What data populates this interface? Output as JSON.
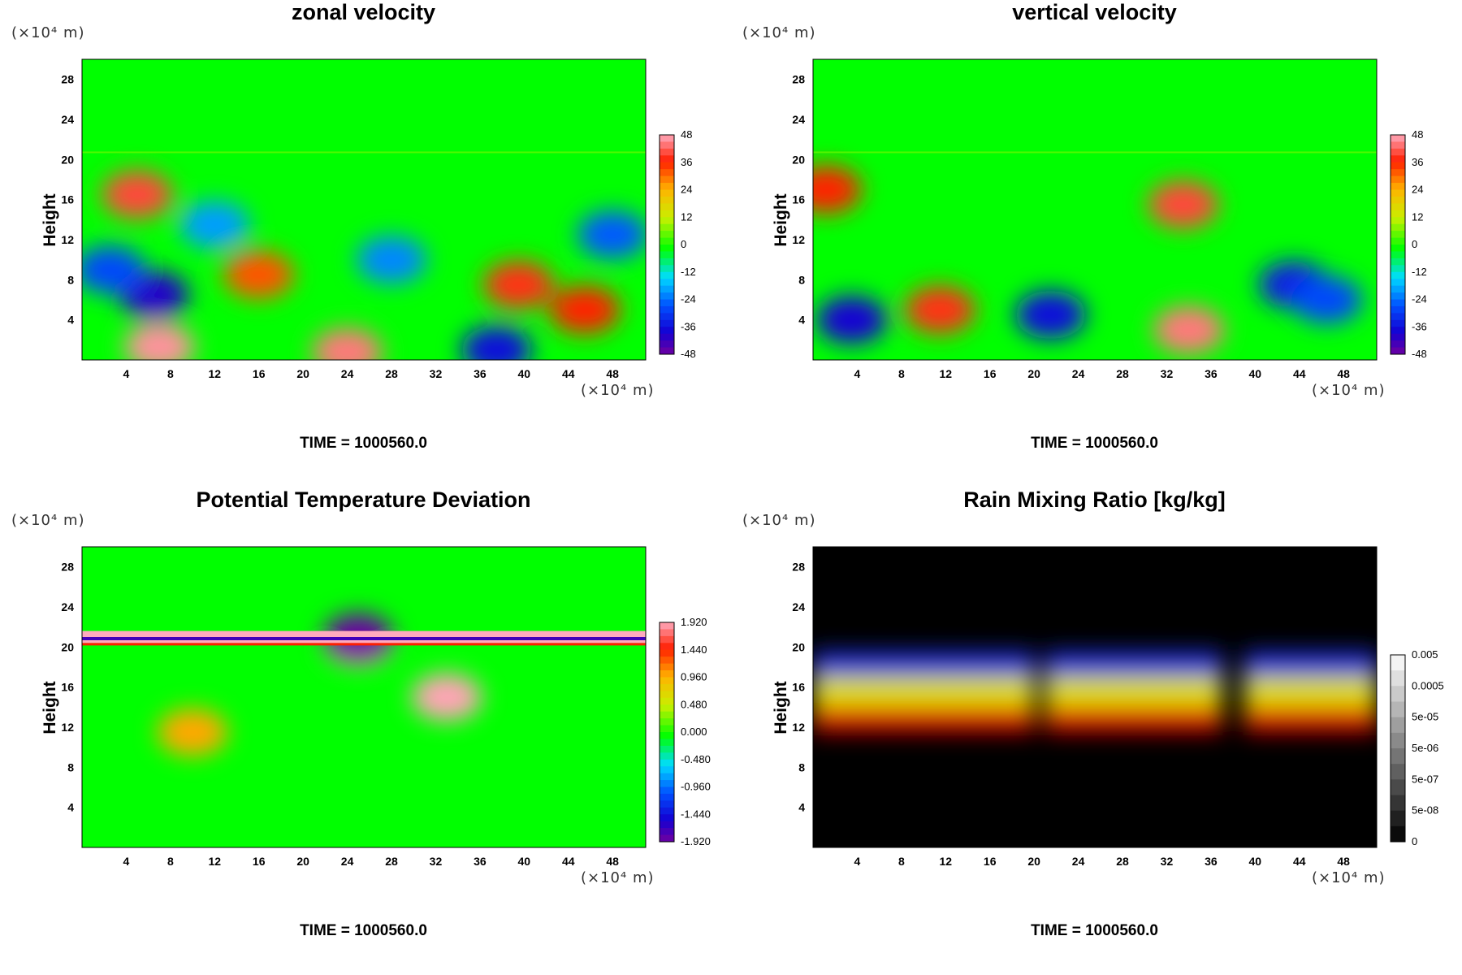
{
  "panels": [
    {
      "title": "zonal velocity",
      "y_unit": "(×10⁴ m)",
      "x_unit": "(×10⁴ m)",
      "ylabel": "Height",
      "time": "TIME = 1000560.0"
    },
    {
      "title": "vertical velocity",
      "y_unit": "(×10⁴ m)",
      "x_unit": "(×10⁴ m)",
      "ylabel": "Height",
      "time": "TIME = 1000560.0"
    },
    {
      "title": "Potential Temperature Deviation",
      "y_unit": "(×10⁴ m)",
      "x_unit": "(×10⁴ m)",
      "ylabel": "Height",
      "time": "TIME = 1000560.0"
    },
    {
      "title": "Rain Mixing Ratio [kg/kg]",
      "y_unit": "(×10⁴ m)",
      "x_unit": "(×10⁴ m)",
      "ylabel": "Height",
      "time": "TIME = 1000560.0"
    }
  ],
  "chart_data": [
    {
      "type": "heatmap",
      "title": "zonal velocity",
      "xlabel": "",
      "ylabel": "Height",
      "x_ticks": [
        "4",
        "8",
        "12",
        "16",
        "20",
        "24",
        "28",
        "32",
        "36",
        "40",
        "44",
        "48"
      ],
      "y_ticks": [
        "4",
        "8",
        "12",
        "16",
        "20",
        "24",
        "28"
      ],
      "xlim": [
        0,
        51
      ],
      "ylim": [
        0,
        30
      ],
      "colorbar_ticks": [
        "48",
        "36",
        "24",
        "12",
        "0",
        "-12",
        "-24",
        "-36",
        "-48"
      ],
      "colorbar_range": [
        -48,
        48
      ],
      "colormap": "rainbow",
      "background_color": "#00ff00",
      "features": [
        {
          "x": 6.5,
          "y": 6.5,
          "value": -40
        },
        {
          "x": 2.5,
          "y": 9,
          "value": -28
        },
        {
          "x": 16,
          "y": 8.5,
          "value": 32
        },
        {
          "x": 39.5,
          "y": 7.5,
          "value": 38
        },
        {
          "x": 45.5,
          "y": 5,
          "value": 36
        },
        {
          "x": 7,
          "y": 1.3,
          "value": 46
        },
        {
          "x": 24,
          "y": 0.8,
          "value": 44
        },
        {
          "x": 37.5,
          "y": 1,
          "value": -36
        },
        {
          "x": 5,
          "y": 16.5,
          "value": 40
        },
        {
          "x": 12,
          "y": 13.5,
          "value": -20
        },
        {
          "x": 28,
          "y": 10,
          "value": -22
        },
        {
          "x": 48,
          "y": 12.5,
          "value": -26
        }
      ]
    },
    {
      "type": "heatmap",
      "title": "vertical velocity",
      "xlabel": "",
      "ylabel": "Height",
      "x_ticks": [
        "4",
        "8",
        "12",
        "16",
        "20",
        "24",
        "28",
        "32",
        "36",
        "40",
        "44",
        "48"
      ],
      "y_ticks": [
        "4",
        "8",
        "12",
        "16",
        "20",
        "24",
        "28"
      ],
      "xlim": [
        0,
        51
      ],
      "ylim": [
        0,
        30
      ],
      "colorbar_ticks": [
        "48",
        "36",
        "24",
        "12",
        "0",
        "-12",
        "-24",
        "-36",
        "-48"
      ],
      "colorbar_range": [
        -48,
        48
      ],
      "colormap": "rainbow",
      "background_color": "#00ff00",
      "features": [
        {
          "x": 11.5,
          "y": 5,
          "value": 38
        },
        {
          "x": 3.5,
          "y": 4,
          "value": -38
        },
        {
          "x": 21.5,
          "y": 4.5,
          "value": -36
        },
        {
          "x": 34,
          "y": 3,
          "value": 44
        },
        {
          "x": 33.5,
          "y": 15.5,
          "value": 40
        },
        {
          "x": 43.5,
          "y": 7.5,
          "value": -34
        },
        {
          "x": 46.5,
          "y": 6,
          "value": -28
        },
        {
          "x": 1.2,
          "y": 17,
          "value": 36
        }
      ]
    },
    {
      "type": "heatmap",
      "title": "Potential Temperature Deviation",
      "xlabel": "",
      "ylabel": "Height",
      "x_ticks": [
        "4",
        "8",
        "12",
        "16",
        "20",
        "24",
        "28",
        "32",
        "36",
        "40",
        "44",
        "48"
      ],
      "y_ticks": [
        "4",
        "8",
        "12",
        "16",
        "20",
        "24",
        "28"
      ],
      "xlim": [
        0,
        51
      ],
      "ylim": [
        0,
        30
      ],
      "colorbar_ticks": [
        "1.920",
        "1.440",
        "0.960",
        "0.480",
        "0.000",
        "-0.480",
        "-0.960",
        "-1.440",
        "-1.920"
      ],
      "colorbar_range": [
        -1.92,
        1.92
      ],
      "colormap": "rainbow",
      "background_color": "#00ff00",
      "features": [
        {
          "x": 33,
          "y": 15,
          "value": 1.9
        },
        {
          "x": 25,
          "y": 20.5,
          "value": 1.9
        },
        {
          "x": 25,
          "y": 21,
          "value": -1.9
        },
        {
          "x": 10,
          "y": 11.5,
          "value": 1.0
        }
      ]
    },
    {
      "type": "heatmap",
      "title": "Rain Mixing Ratio [kg/kg]",
      "xlabel": "",
      "ylabel": "Height",
      "x_ticks": [
        "4",
        "8",
        "12",
        "16",
        "20",
        "24",
        "28",
        "32",
        "36",
        "40",
        "44",
        "48"
      ],
      "y_ticks": [
        "4",
        "8",
        "12",
        "16",
        "20",
        "24",
        "28"
      ],
      "xlim": [
        0,
        51
      ],
      "ylim": [
        0,
        30
      ],
      "colorbar_ticks": [
        "0.005",
        "0.0005",
        "5e-05",
        "5e-06",
        "5e-07",
        "5e-08",
        "0"
      ],
      "colormap": "grayscale",
      "background_color": "#000000",
      "layers": [
        {
          "name": "blue",
          "y_range": [
            17,
            19.5
          ],
          "color": "#2233dd"
        },
        {
          "name": "yellow",
          "y_range": [
            14,
            17
          ],
          "color": "#dddd00"
        },
        {
          "name": "red",
          "y_range": [
            11.5,
            14
          ],
          "color": "#dd1100"
        }
      ]
    }
  ]
}
